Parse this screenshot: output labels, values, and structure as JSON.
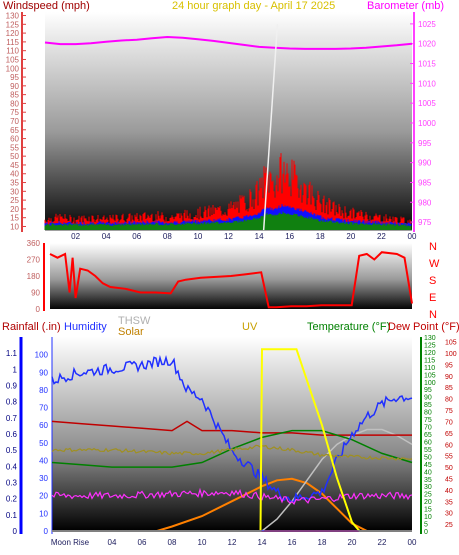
{
  "header": {
    "windspeed": "Windspeed (mph)",
    "title": "24 hour graph day - April 17 2025",
    "barometer": "Barometer (mb)"
  },
  "bottom_labels": {
    "rainfall": "Rainfall (.in)",
    "humidity": "Humidity",
    "thsw": "THSW",
    "solar": "Solar",
    "uv": "UV",
    "temperature": "Temperature (°F)",
    "dewpoint": "Dew Point (°F)",
    "moonrise": "Moon Rise"
  },
  "colors": {
    "windspeed": "#ff0000",
    "gust": "#ff2020",
    "avg_blue": "#1010ff",
    "avg_green": "#108010",
    "barometer": "#ff00ff",
    "title": "#d8c000",
    "direction": "#ff0000",
    "humidity": "#2030ff",
    "temperature": "#008000",
    "dewpoint": "#c00000",
    "uv": "#ffff00",
    "solar": "#ff8000",
    "thsw": "#c0c0c0",
    "rainfall": "#0000ff",
    "axis_left": "#c06060"
  },
  "chart_data": [
    {
      "type": "line",
      "name": "wind-barometer",
      "x_ticks": [
        "02",
        "04",
        "06",
        "08",
        "10",
        "12",
        "14",
        "16",
        "18",
        "20",
        "22",
        "00"
      ],
      "left_axis": {
        "ticks": [
          "10",
          "15",
          "20",
          "25",
          "30",
          "35",
          "40",
          "45",
          "50",
          "55",
          "60",
          "65",
          "70",
          "75",
          "80",
          "85",
          "90",
          "95",
          "100",
          "105",
          "110",
          "115",
          "120",
          "125",
          "130"
        ],
        "ylim": [
          8,
          132
        ]
      },
      "right_axis": {
        "ticks": [
          "975",
          "980",
          "985",
          "990",
          "995",
          "1000",
          "1005",
          "1010",
          "1015",
          "1020",
          "1025"
        ],
        "ylim": [
          973,
          1028
        ]
      },
      "series": [
        {
          "name": "Windspeed (mph)",
          "x": [
            0,
            1,
            2,
            3,
            4,
            5,
            6,
            7,
            8,
            9,
            10,
            11,
            12,
            13,
            14,
            14.5,
            15,
            15.5,
            16,
            16.5,
            17,
            17.5,
            18,
            19,
            20,
            21,
            22,
            23,
            24
          ],
          "values": [
            13,
            14,
            13,
            14,
            13,
            14,
            14,
            15,
            14,
            15,
            16,
            17,
            18,
            21,
            26,
            34,
            30,
            36,
            34,
            31,
            28,
            25,
            21,
            18,
            16,
            15,
            14,
            13,
            12
          ]
        },
        {
          "name": "Barometer (mb)",
          "x": [
            0,
            1,
            2,
            3,
            4,
            5,
            6,
            7,
            8,
            9,
            10,
            11,
            12,
            13,
            14,
            15,
            16,
            17,
            18,
            19,
            20,
            21,
            22,
            23,
            24
          ],
          "values": [
            1020.3,
            1019.9,
            1019.9,
            1020.1,
            1020.5,
            1020.8,
            1021.0,
            1021.4,
            1021.7,
            1021.5,
            1021.1,
            1020.7,
            1020.2,
            1019.7,
            1019.2,
            1019.0,
            1018.8,
            1018.7,
            1018.7,
            1018.7,
            1018.8,
            1019.0,
            1019.3,
            1019.6,
            1020.0
          ]
        }
      ]
    },
    {
      "type": "line",
      "name": "wind-direction",
      "x_ticks": [
        "02",
        "04",
        "06",
        "08",
        "10",
        "12",
        "14",
        "16",
        "18",
        "20",
        "22",
        "00"
      ],
      "left_axis": {
        "ticks": [
          "0",
          "90",
          "180",
          "270",
          "360"
        ],
        "ylim": [
          0,
          360
        ]
      },
      "right_axis": {
        "ticks": [
          "N",
          "W",
          "S",
          "E",
          "N"
        ]
      },
      "series": [
        {
          "name": "direction",
          "x": [
            0,
            0.5,
            1,
            1.3,
            1.5,
            1.7,
            2,
            2.5,
            3,
            3.5,
            4,
            5,
            6,
            7,
            8,
            8.5,
            9,
            10,
            11,
            12,
            13,
            14,
            14.5,
            15,
            16,
            17,
            18,
            19,
            20,
            20.5,
            21,
            21.5,
            22,
            23,
            23.5,
            24
          ],
          "values": [
            300,
            280,
            300,
            90,
            280,
            60,
            220,
            210,
            180,
            140,
            120,
            110,
            90,
            90,
            85,
            150,
            160,
            170,
            175,
            180,
            190,
            200,
            10,
            10,
            15,
            15,
            20,
            20,
            20,
            290,
            300,
            270,
            310,
            300,
            280,
            30
          ]
        }
      ]
    },
    {
      "type": "line",
      "name": "weather",
      "x_ticks": [
        "Moon Rise",
        "04",
        "06",
        "08",
        "10",
        "12",
        "14",
        "16",
        "18",
        "20",
        "22",
        "00"
      ],
      "axes": {
        "rainfall": {
          "ticks": [
            "0",
            "0.1",
            "0.2",
            "0.3",
            "0.4",
            "0.5",
            "0.6",
            "0.7",
            "0.8",
            "0.9",
            "1",
            "1.1"
          ],
          "ylim": [
            0,
            1.2
          ]
        },
        "humidity": {
          "ticks": [
            "0",
            "10",
            "20",
            "30",
            "40",
            "50",
            "60",
            "70",
            "80",
            "90",
            "100"
          ],
          "ylim": [
            0,
            110
          ]
        },
        "solar_thsw": {
          "ticks": [
            "0",
            "5",
            "10",
            "15",
            "20",
            "25",
            "30",
            "35",
            "40",
            "45",
            "50",
            "55",
            "60",
            "65",
            "70",
            "75",
            "80",
            "85",
            "90",
            "95",
            "100",
            "105",
            "110",
            "115",
            "120",
            "125",
            "130"
          ],
          "ylim": [
            0,
            130
          ]
        },
        "dewpoint": {
          "ticks": [
            "25",
            "30",
            "35",
            "40",
            "45",
            "50",
            "55",
            "60",
            "65",
            "70",
            "75",
            "80",
            "85",
            "90",
            "95",
            "100",
            "105"
          ],
          "ylim": [
            22,
            107
          ]
        }
      },
      "series": [
        {
          "name": "Humidity",
          "x": [
            0,
            1,
            2,
            3,
            4,
            5,
            6,
            7,
            8,
            9,
            10,
            11,
            12,
            13,
            14,
            15,
            16,
            17,
            18,
            19,
            20,
            21,
            22,
            23,
            24
          ],
          "values": [
            85,
            88,
            90,
            91,
            92,
            93,
            94,
            96,
            97,
            80,
            75,
            60,
            45,
            38,
            30,
            22,
            18,
            20,
            22,
            40,
            55,
            65,
            72,
            76,
            76
          ]
        },
        {
          "name": "Temperature (°F)",
          "x": [
            0,
            2,
            4,
            6,
            8,
            10,
            12,
            14,
            16,
            18,
            20,
            22,
            24
          ],
          "values": [
            52,
            51,
            50,
            50,
            50,
            52,
            58,
            63,
            66,
            66,
            62,
            56,
            52
          ]
        },
        {
          "name": "Dew Point (°F)",
          "x": [
            0,
            2,
            4,
            6,
            8,
            9,
            10,
            12,
            14,
            16,
            18,
            20,
            22,
            24
          ],
          "values": [
            70,
            69,
            68,
            67,
            66,
            70,
            66,
            66,
            65,
            65,
            64,
            64,
            64,
            64
          ]
        },
        {
          "name": "UV",
          "x": [
            0,
            13.9,
            14,
            16.3,
            18,
            19,
            20,
            20.5,
            24
          ],
          "values": [
            0,
            0,
            10.3,
            10.3,
            6,
            3,
            0.5,
            0,
            0
          ]
        },
        {
          "name": "Solar",
          "x": [
            0,
            7,
            8,
            10,
            12,
            14,
            15,
            16,
            17,
            18,
            19,
            20,
            21
          ],
          "values": [
            0,
            0,
            3,
            10,
            20,
            30,
            34,
            35,
            32,
            25,
            15,
            5,
            0
          ]
        },
        {
          "name": "THSW",
          "x": [
            14,
            15,
            16,
            17,
            18,
            19,
            20,
            21,
            22,
            23,
            24
          ],
          "values": [
            0,
            8,
            20,
            34,
            48,
            58,
            64,
            68,
            68,
            64,
            58
          ]
        },
        {
          "name": "Rainfall (.in)",
          "x": [
            0,
            24
          ],
          "values": [
            0,
            0
          ]
        }
      ]
    }
  ]
}
